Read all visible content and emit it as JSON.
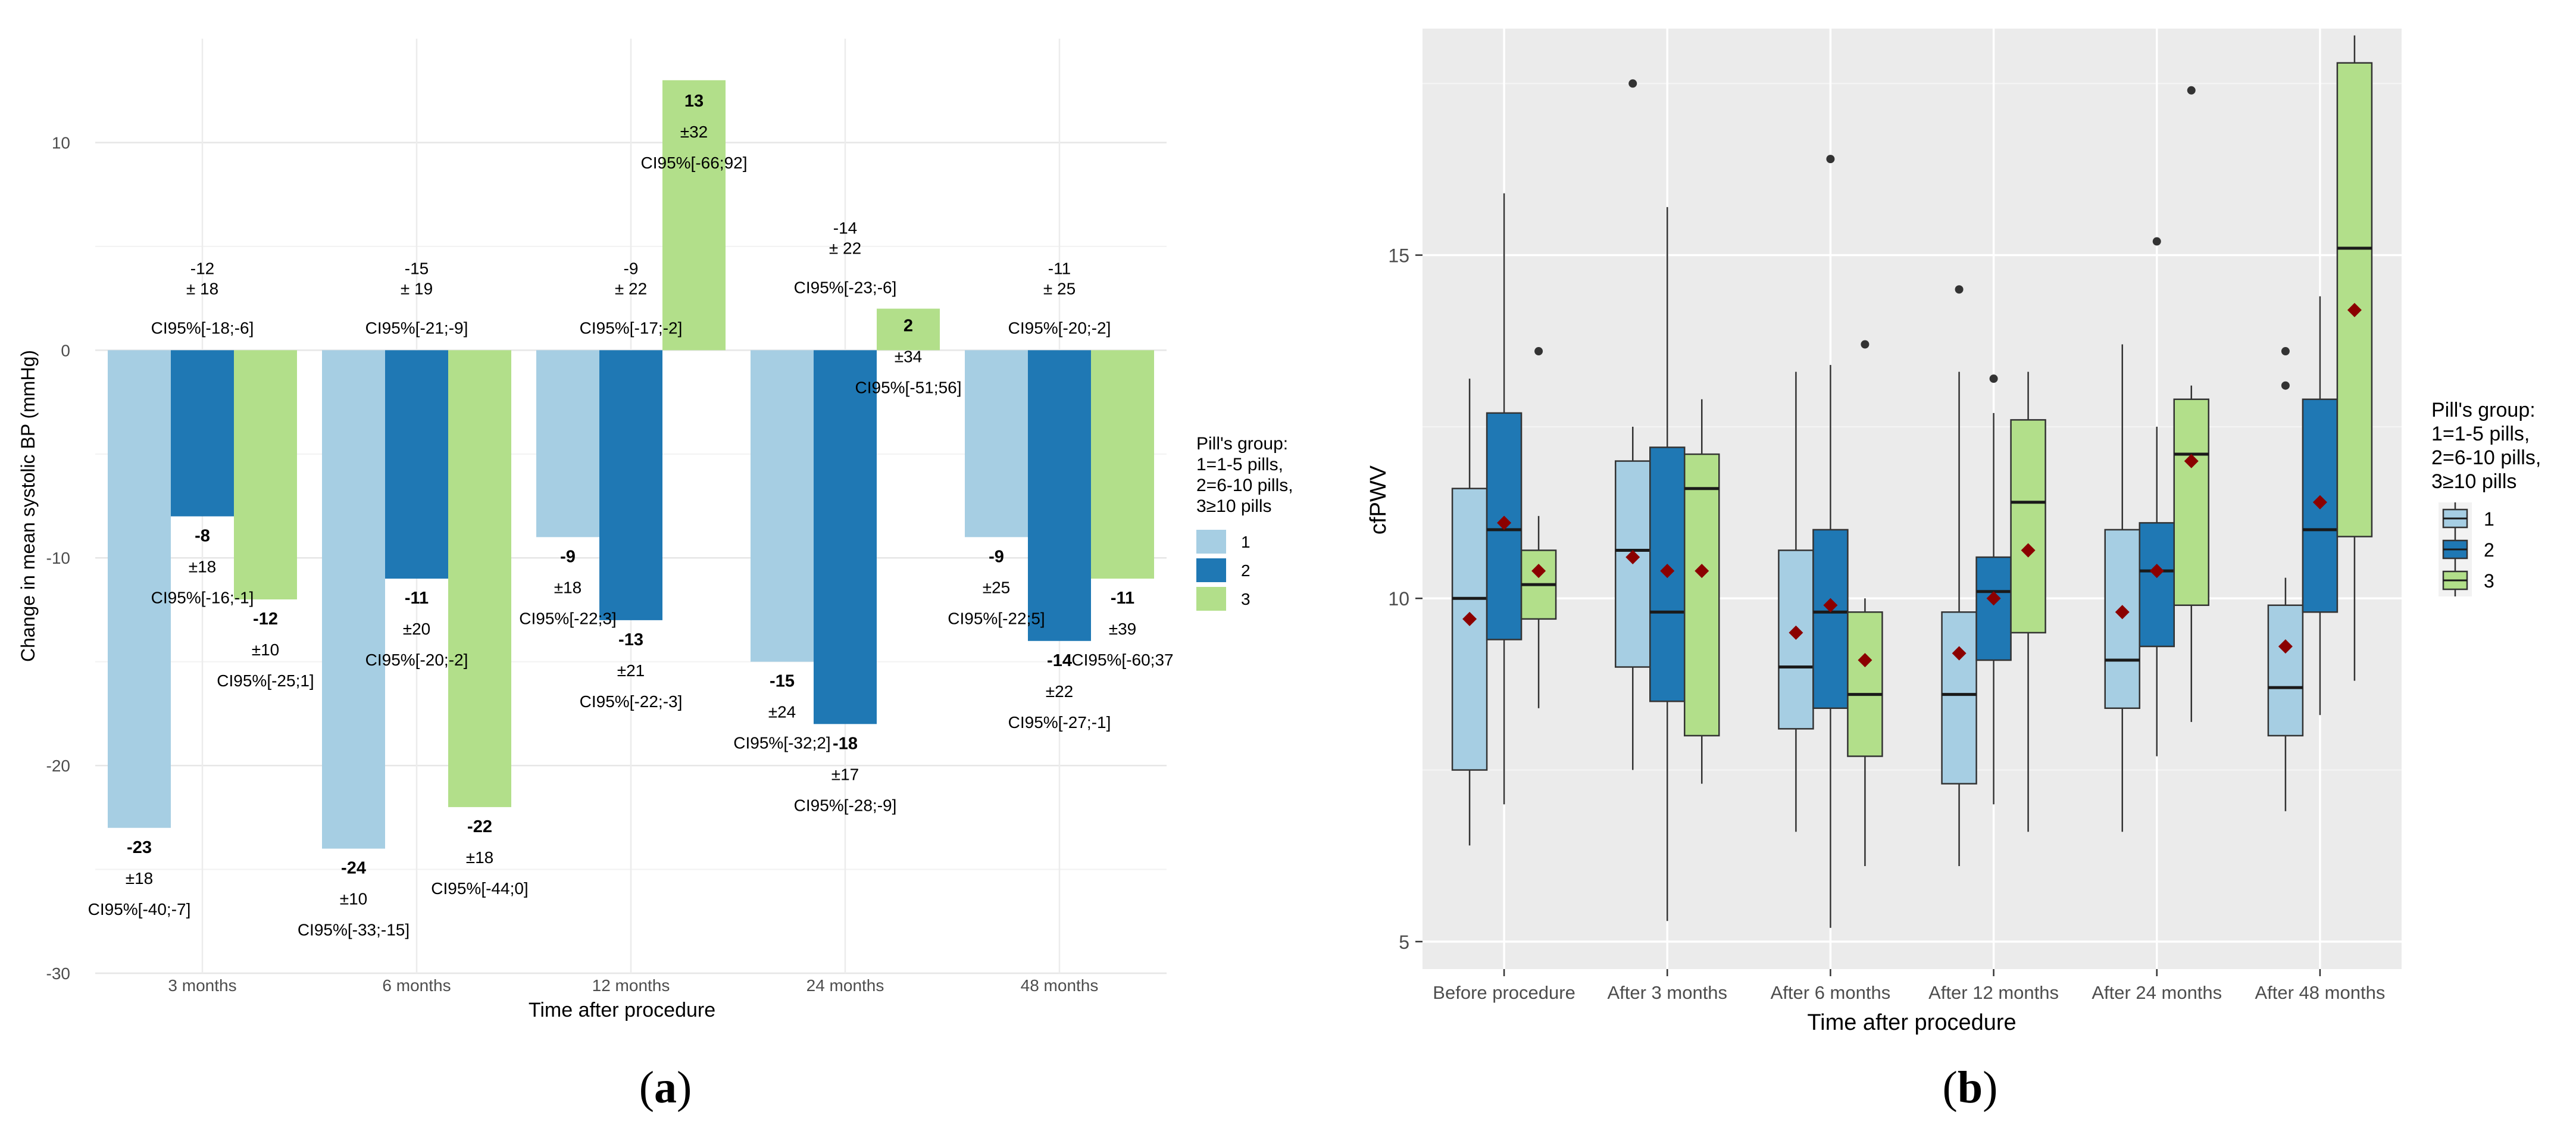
{
  "chart_data": [
    {
      "id": "a",
      "type": "bar",
      "panel_label": "(a)",
      "panel_label_letter": "a",
      "xlabel": "Time after procedure",
      "ylabel": "Change in mean systolic BP (mmHg)",
      "ylim": [
        -30,
        15
      ],
      "yticks": [
        -30,
        -20,
        -10,
        0,
        10
      ],
      "grid": true,
      "legend": {
        "title_lines": [
          "Pill's group:",
          " 1=1-5 pills,",
          " 2=6-10 pills,",
          " 3≥10 pills"
        ],
        "entries": [
          "1",
          "2",
          "3"
        ],
        "placement": "right"
      },
      "categories": [
        "3  months",
        "6  months",
        "12  months",
        "24  months",
        "48  months"
      ],
      "series": [
        {
          "name": "1",
          "color": "#a6cee3",
          "values": [
            -23,
            -24,
            -9,
            -15,
            -9
          ],
          "mean_labels": [
            "-23",
            "-24",
            "-9",
            "-15",
            "-9"
          ],
          "sd_labels": [
            "±18",
            "±10",
            "±18",
            "±24",
            "±25"
          ],
          "ci_labels": [
            "CI95%[-40;-7]",
            "CI95%[-33;-15]",
            "CI95%[-22;3]",
            "CI95%[-32;2]",
            "CI95%[-22;5]"
          ]
        },
        {
          "name": "2",
          "color": "#1f78b4",
          "values": [
            -8,
            -11,
            -13,
            -18,
            -14
          ],
          "mean_labels": [
            "-8",
            "-11",
            "-13",
            "-18",
            "-14"
          ],
          "sd_labels": [
            "±18",
            "±20",
            "±21",
            "±17",
            "±22"
          ],
          "ci_labels": [
            "CI95%[-16;-1]",
            "CI95%[-20;-2]",
            "CI95%[-22;-3]",
            "CI95%[-28;-9]",
            "CI95%[-27;-1]"
          ]
        },
        {
          "name": "3",
          "color": "#b2df8a",
          "values": [
            -12,
            -22,
            13,
            2,
            -11
          ],
          "mean_labels": [
            "-12",
            "-22",
            "13",
            "2",
            "-11"
          ],
          "sd_labels": [
            "±10",
            "±18",
            "±32",
            "±34",
            "±39"
          ],
          "ci_labels": [
            "CI95%[-25;1]",
            "CI95%[-44;0]",
            "CI95%[-66;92]",
            "CI95%[-51;56]",
            "CI95%[-60;37"
          ]
        }
      ],
      "overall": [
        {
          "mean": "-12",
          "sd": "± 18",
          "ci": "CI95%[-18;-6]"
        },
        {
          "mean": "-15",
          "sd": "± 19",
          "ci": "CI95%[-21;-9]"
        },
        {
          "mean": "-9",
          "sd": "± 22",
          "ci": "CI95%[-17;-2]"
        },
        {
          "mean": "-14",
          "sd": "± 22",
          "ci": "CI95%[-23;-6]"
        },
        {
          "mean": "-11",
          "sd": "± 25",
          "ci": "CI95%[-20;-2]"
        }
      ]
    },
    {
      "id": "b",
      "type": "box",
      "panel_label": "(b)",
      "panel_label_letter": "b",
      "xlabel": "Time after procedure",
      "ylabel": "cfPWV",
      "ylim": [
        4.6,
        18.3
      ],
      "yticks": [
        5,
        10,
        15
      ],
      "grid": true,
      "legend": {
        "title_lines": [
          "Pill's group:",
          " 1=1-5 pills,",
          " 2=6-10 pills,",
          " 3≥10 pills"
        ],
        "entries": [
          "1",
          "2",
          "3"
        ],
        "placement": "right"
      },
      "categories": [
        "Before procedure",
        "After 3 months",
        "After 6 months",
        "After 12 months",
        "After 24 months",
        "After 48 months"
      ],
      "colors": [
        "#a6cee3",
        "#1f78b4",
        "#b2df8a"
      ],
      "groups": [
        "1",
        "2",
        "3"
      ],
      "boxes": [
        [
          {
            "whisker_low": 6.4,
            "q1": 7.5,
            "median": 10.0,
            "q3": 11.6,
            "whisker_high": 13.2,
            "mean": 9.7,
            "outliers": []
          },
          {
            "whisker_low": 7.0,
            "q1": 9.4,
            "median": 11.0,
            "q3": 12.7,
            "whisker_high": 15.9,
            "mean": 11.1,
            "outliers": []
          },
          {
            "whisker_low": 8.4,
            "q1": 9.7,
            "median": 10.2,
            "q3": 10.7,
            "whisker_high": 11.2,
            "mean": 10.4,
            "outliers": [
              13.6
            ]
          }
        ],
        [
          {
            "whisker_low": 7.5,
            "q1": 9.0,
            "median": 10.7,
            "q3": 12.0,
            "whisker_high": 12.5,
            "mean": 10.6,
            "outliers": [
              17.5
            ]
          },
          {
            "whisker_low": 5.3,
            "q1": 8.5,
            "median": 9.8,
            "q3": 12.2,
            "whisker_high": 15.7,
            "mean": 10.4,
            "outliers": []
          },
          {
            "whisker_low": 7.3,
            "q1": 8.0,
            "median": 11.6,
            "q3": 12.1,
            "whisker_high": 12.9,
            "mean": 10.4,
            "outliers": []
          }
        ],
        [
          {
            "whisker_low": 6.6,
            "q1": 8.1,
            "median": 9.0,
            "q3": 10.7,
            "whisker_high": 13.3,
            "mean": 9.5,
            "outliers": []
          },
          {
            "whisker_low": 5.2,
            "q1": 8.4,
            "median": 9.8,
            "q3": 11.0,
            "whisker_high": 13.4,
            "mean": 9.9,
            "outliers": [
              16.4
            ]
          },
          {
            "whisker_low": 6.1,
            "q1": 7.7,
            "median": 8.6,
            "q3": 9.8,
            "whisker_high": 10.0,
            "mean": 9.1,
            "outliers": [
              13.7
            ]
          }
        ],
        [
          {
            "whisker_low": 6.1,
            "q1": 7.3,
            "median": 8.6,
            "q3": 9.8,
            "whisker_high": 13.3,
            "mean": 9.2,
            "outliers": [
              14.5
            ]
          },
          {
            "whisker_low": 7.0,
            "q1": 9.1,
            "median": 10.1,
            "q3": 10.6,
            "whisker_high": 12.7,
            "mean": 10.0,
            "outliers": [
              13.2
            ]
          },
          {
            "whisker_low": 6.6,
            "q1": 9.5,
            "median": 11.4,
            "q3": 12.6,
            "whisker_high": 13.3,
            "mean": 10.7,
            "outliers": []
          }
        ],
        [
          {
            "whisker_low": 6.6,
            "q1": 8.4,
            "median": 9.1,
            "q3": 11.0,
            "whisker_high": 13.7,
            "mean": 9.8,
            "outliers": []
          },
          {
            "whisker_low": 7.7,
            "q1": 9.3,
            "median": 10.4,
            "q3": 11.1,
            "whisker_high": 12.5,
            "mean": 10.4,
            "outliers": [
              15.2
            ]
          },
          {
            "whisker_low": 8.2,
            "q1": 9.9,
            "median": 12.1,
            "q3": 12.9,
            "whisker_high": 13.1,
            "mean": 12.0,
            "outliers": [
              17.4
            ]
          }
        ],
        [
          {
            "whisker_low": 6.9,
            "q1": 8.0,
            "median": 8.7,
            "q3": 9.9,
            "whisker_high": 10.3,
            "mean": 9.3,
            "outliers": [
              13.1,
              13.6
            ]
          },
          {
            "whisker_low": 8.3,
            "q1": 9.8,
            "median": 11.0,
            "q3": 12.9,
            "whisker_high": 14.4,
            "mean": 11.4,
            "outliers": []
          },
          {
            "whisker_low": 8.8,
            "q1": 10.9,
            "median": 15.1,
            "q3": 17.8,
            "whisker_high": 18.2,
            "mean": 14.2,
            "outliers": []
          }
        ]
      ]
    }
  ]
}
